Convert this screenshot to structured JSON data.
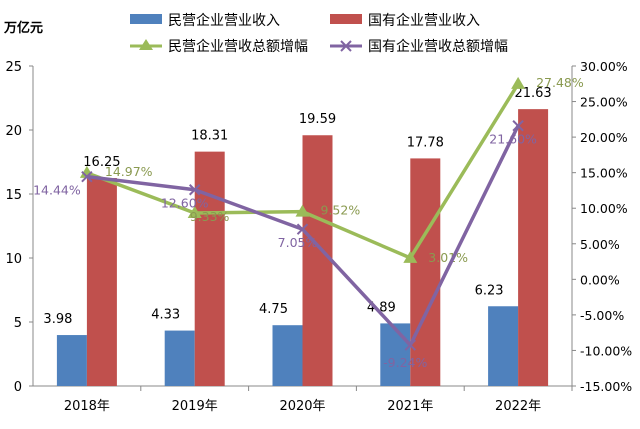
{
  "chart_data": {
    "type": "bar+line",
    "y_unit_label": "万亿元",
    "categories": [
      "2018年",
      "2019年",
      "2020年",
      "2021年",
      "2022年"
    ],
    "ylim": [
      0,
      25
    ],
    "yticks": [
      "0",
      "5",
      "10",
      "15",
      "20",
      "25"
    ],
    "y2lim": [
      -15,
      30
    ],
    "y2ticks": [
      "-15.00%",
      "-10.00%",
      "-5.00%",
      "0.00%",
      "5.00%",
      "10.00%",
      "15.00%",
      "20.00%",
      "25.00%",
      "30.00%"
    ],
    "grid": false,
    "legend_position": "top",
    "bar_series": [
      {
        "name": "民营企业营业收入",
        "color": "#4f81bd",
        "values": [
          3.98,
          4.33,
          4.75,
          4.89,
          6.23
        ],
        "labels": [
          "3.98",
          "4.33",
          "4.75",
          "4.89",
          "6.23"
        ]
      },
      {
        "name": "国有企业营业收入",
        "color": "#c0504d",
        "values": [
          16.25,
          18.31,
          19.59,
          17.78,
          21.63
        ],
        "labels": [
          "16.25",
          "18.31",
          "19.59",
          "17.78",
          "21.63"
        ]
      }
    ],
    "line_series": [
      {
        "name": "民营企业营收总额增幅",
        "color": "#9bbb59",
        "marker": "triangle",
        "values": [
          14.97,
          9.33,
          9.52,
          3.01,
          27.48
        ],
        "labels": [
          "14.97%",
          "9.33%",
          "9.52%",
          "3.01%",
          "27.48%"
        ]
      },
      {
        "name": "国有企业营收总额增幅",
        "color": "#8064a2",
        "marker": "x",
        "values": [
          14.44,
          12.6,
          7.05,
          -9.24,
          21.6
        ],
        "labels": [
          "14.44%",
          "12.60%",
          "7.05%",
          "-9.24%",
          "21.60%"
        ]
      }
    ]
  }
}
